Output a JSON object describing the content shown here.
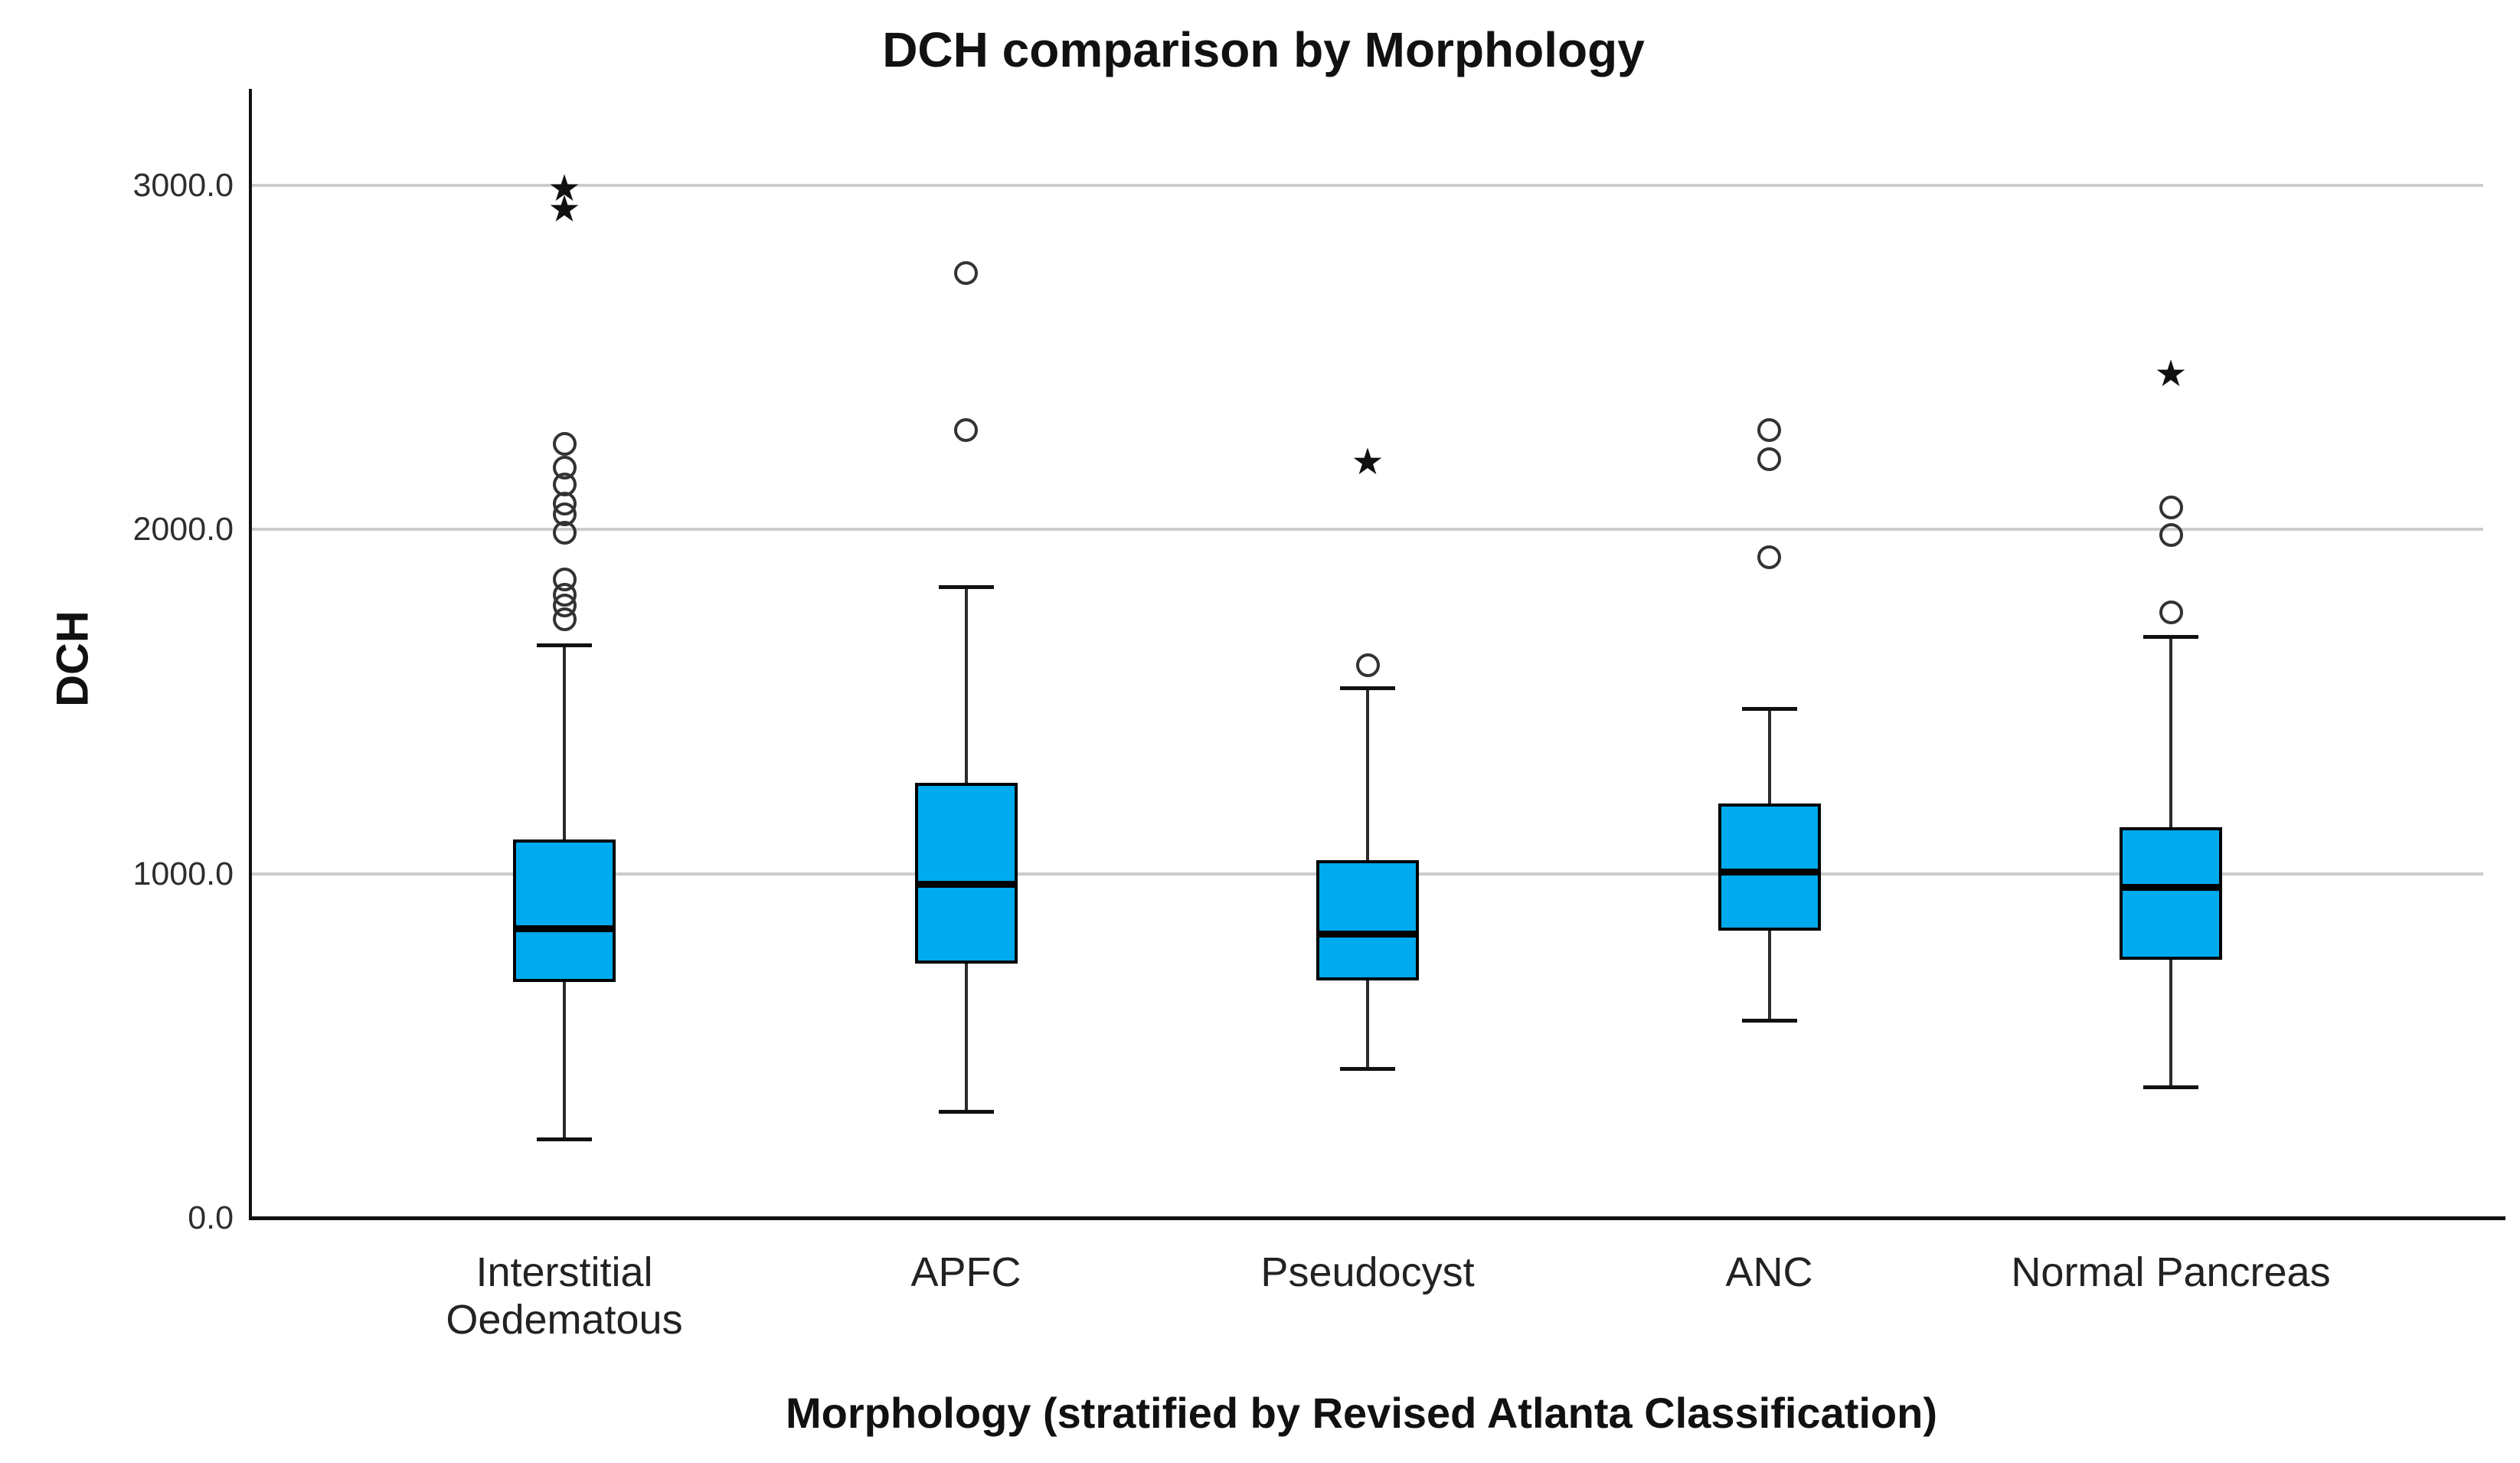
{
  "title": "DCH comparison by Morphology",
  "y_axis": {
    "label": "DCH",
    "ticks": [
      {
        "label": "0.0",
        "value": 0
      },
      {
        "label": "1000.0",
        "value": 1000
      },
      {
        "label": "2000.0",
        "value": 2000
      },
      {
        "label": "3000.0",
        "value": 3000
      }
    ],
    "min": 0,
    "max": 3270,
    "grid": true
  },
  "x_axis": {
    "label": "Morphology (stratified by Revised Atlanta Classification)"
  },
  "chart_data": {
    "type": "boxplot",
    "title": "DCH comparison by Morphology",
    "xlabel": "Morphology (stratified by Revised Atlanta Classification)",
    "ylabel": "DCH",
    "ylim": [
      0,
      3270
    ],
    "legend": "none",
    "categories": [
      "Interstitial Oedematous",
      "APFC",
      "Pseudocyst",
      "ANC",
      "Normal Pancreas"
    ],
    "series": [
      {
        "name": "Interstitial Oedematous",
        "label_lines": [
          "Interstitial",
          "Oedematous"
        ],
        "whisker_low": 230,
        "q1": 685,
        "median": 840,
        "q3": 1100,
        "whisker_high": 1665,
        "outliers": [
          2250,
          2180,
          2130,
          2075,
          2045,
          1990,
          1855,
          1810,
          1780,
          1740
        ],
        "extremes": [
          2990,
          2930
        ]
      },
      {
        "name": "APFC",
        "label_lines": [
          "APFC"
        ],
        "whisker_low": 310,
        "q1": 740,
        "median": 970,
        "q3": 1265,
        "whisker_high": 1835,
        "outliers": [
          2745,
          2290
        ],
        "extremes": []
      },
      {
        "name": "Pseudocyst",
        "label_lines": [
          "Pseudocyst"
        ],
        "whisker_low": 435,
        "q1": 690,
        "median": 825,
        "q3": 1040,
        "whisker_high": 1540,
        "outliers": [
          1605
        ],
        "extremes": [
          2195
        ]
      },
      {
        "name": "ANC",
        "label_lines": [
          "ANC"
        ],
        "whisker_low": 575,
        "q1": 835,
        "median": 1005,
        "q3": 1205,
        "whisker_high": 1480,
        "outliers": [
          2290,
          2205,
          1920
        ],
        "extremes": []
      },
      {
        "name": "Normal Pancreas",
        "label_lines": [
          "Normal Pancreas"
        ],
        "whisker_low": 380,
        "q1": 750,
        "median": 960,
        "q3": 1135,
        "whisker_high": 1690,
        "outliers": [
          2065,
          1985,
          1760
        ],
        "extremes": [
          2450
        ]
      }
    ],
    "marker_legend": {
      "circle": "outlier",
      "star": "extreme value"
    }
  },
  "colors": {
    "box_fill": "#00AAEE",
    "box_border": "#000000",
    "median": "#000000",
    "whisker": "#2b2b2b",
    "outlier_stroke": "#333333",
    "extreme": "#111111",
    "gridline": "#cccccc",
    "axis": "#111111",
    "text": "#1a1a1a",
    "background": "#ffffff"
  },
  "icons": {
    "extreme_star_glyph": "★"
  }
}
